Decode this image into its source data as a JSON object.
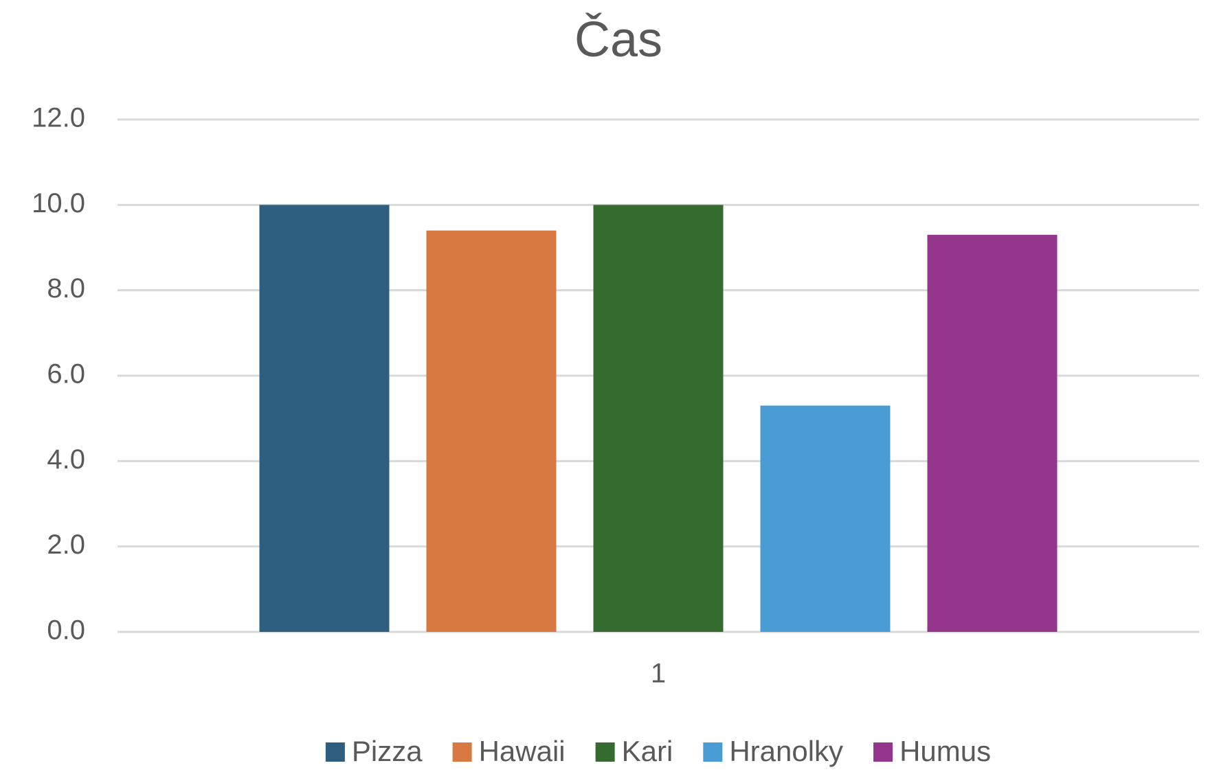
{
  "chart_data": {
    "type": "bar",
    "title": "Čas",
    "categories": [
      "1"
    ],
    "series": [
      {
        "name": "Pizza",
        "color": "#2e5f80",
        "values": [
          10.0
        ]
      },
      {
        "name": "Hawaii",
        "color": "#d87942",
        "values": [
          9.4
        ]
      },
      {
        "name": "Kari",
        "color": "#366b2f",
        "values": [
          10.0
        ]
      },
      {
        "name": "Hranolky",
        "color": "#4a9dd4",
        "values": [
          5.3
        ]
      },
      {
        "name": "Humus",
        "color": "#93368c",
        "values": [
          9.3
        ]
      }
    ],
    "ylim": [
      0,
      12
    ],
    "yticks": [
      {
        "value": 0,
        "label": "0.0"
      },
      {
        "value": 2,
        "label": "2.0"
      },
      {
        "value": 4,
        "label": "4.0"
      },
      {
        "value": 6,
        "label": "6.0"
      },
      {
        "value": 8,
        "label": "8.0"
      },
      {
        "value": 10,
        "label": "10.0"
      },
      {
        "value": 12,
        "label": "12.0"
      }
    ],
    "grid": true,
    "legend": "bottom"
  }
}
